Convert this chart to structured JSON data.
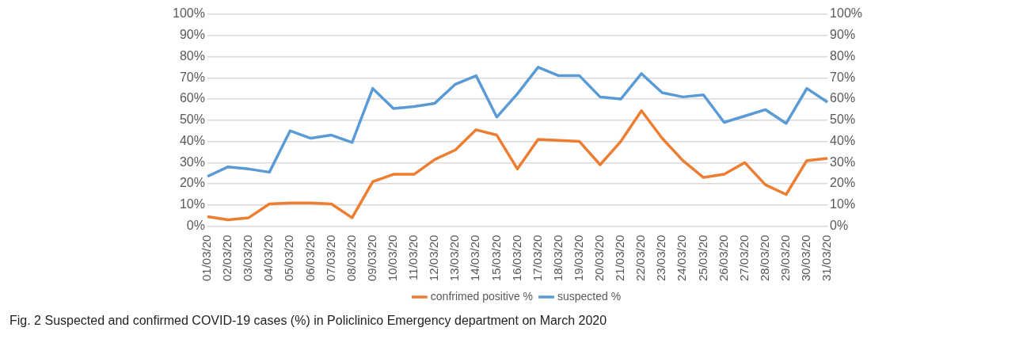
{
  "chart_data": {
    "type": "line",
    "title": "Fig. 2 Suspected and confirmed COVID-19 cases (%) in Policlinico Emergency department on March 2020",
    "categories": [
      "01/03/20",
      "02/03/20",
      "03/03/20",
      "04/03/20",
      "05/03/20",
      "06/03/20",
      "07/03/20",
      "08/03/20",
      "09/03/20",
      "10/03/20",
      "11/03/20",
      "12/03/20",
      "13/03/20",
      "14/03/20",
      "15/03/20",
      "16/03/20",
      "17/03/20",
      "18/03/20",
      "19/03/20",
      "20/03/20",
      "21/03/20",
      "22/03/20",
      "23/03/20",
      "24/03/20",
      "25/03/20",
      "26/03/20",
      "27/03/20",
      "28/03/20",
      "29/03/20",
      "30/03/20",
      "31/03/20"
    ],
    "series": [
      {
        "name": "confrimed positive %",
        "color": "#ed7d31",
        "values": [
          4.5,
          3,
          4,
          10.5,
          11,
          11,
          10.5,
          4,
          21,
          24.5,
          24.5,
          31.5,
          36,
          45.5,
          43,
          27,
          41,
          40.5,
          40,
          29,
          40,
          54.5,
          41.5,
          31,
          23,
          24.5,
          30,
          19.5,
          15,
          31,
          32
        ]
      },
      {
        "name": "suspected %",
        "color": "#5b9bd5",
        "values": [
          23.5,
          28,
          27,
          25.5,
          45,
          41.5,
          43,
          39.5,
          65,
          55.5,
          56.5,
          58,
          67,
          71,
          51.5,
          62.5,
          75,
          71,
          71,
          61,
          60,
          72,
          63,
          61,
          62,
          49,
          52,
          55,
          48.5,
          65,
          58.5
        ]
      }
    ],
    "ylim": [
      0,
      100
    ],
    "yticks": [
      {
        "value": 0,
        "label": "0%"
      },
      {
        "value": 10,
        "label": "10%"
      },
      {
        "value": 20,
        "label": "20%"
      },
      {
        "value": 30,
        "label": "30%"
      },
      {
        "value": 40,
        "label": "40%"
      },
      {
        "value": 50,
        "label": "50%"
      },
      {
        "value": 60,
        "label": "60%"
      },
      {
        "value": 70,
        "label": "70%"
      },
      {
        "value": 80,
        "label": "80%"
      },
      {
        "value": 90,
        "label": "90%"
      },
      {
        "value": 100,
        "label": "100%"
      }
    ],
    "y2lim": [
      0,
      100
    ],
    "y2ticks": [
      {
        "value": 0,
        "label": "0%"
      },
      {
        "value": 10,
        "label": "10%"
      },
      {
        "value": 20,
        "label": "20%"
      },
      {
        "value": 30,
        "label": "30%"
      },
      {
        "value": 40,
        "label": "40%"
      },
      {
        "value": 50,
        "label": "50%"
      },
      {
        "value": 60,
        "label": "60%"
      },
      {
        "value": 70,
        "label": "70%"
      },
      {
        "value": 80,
        "label": "80%"
      },
      {
        "value": 90,
        "label": "90%"
      },
      {
        "value": 100,
        "label": "100%"
      }
    ],
    "grid": "y",
    "legend": "bottom",
    "marker": "none",
    "line_style": "solid"
  }
}
